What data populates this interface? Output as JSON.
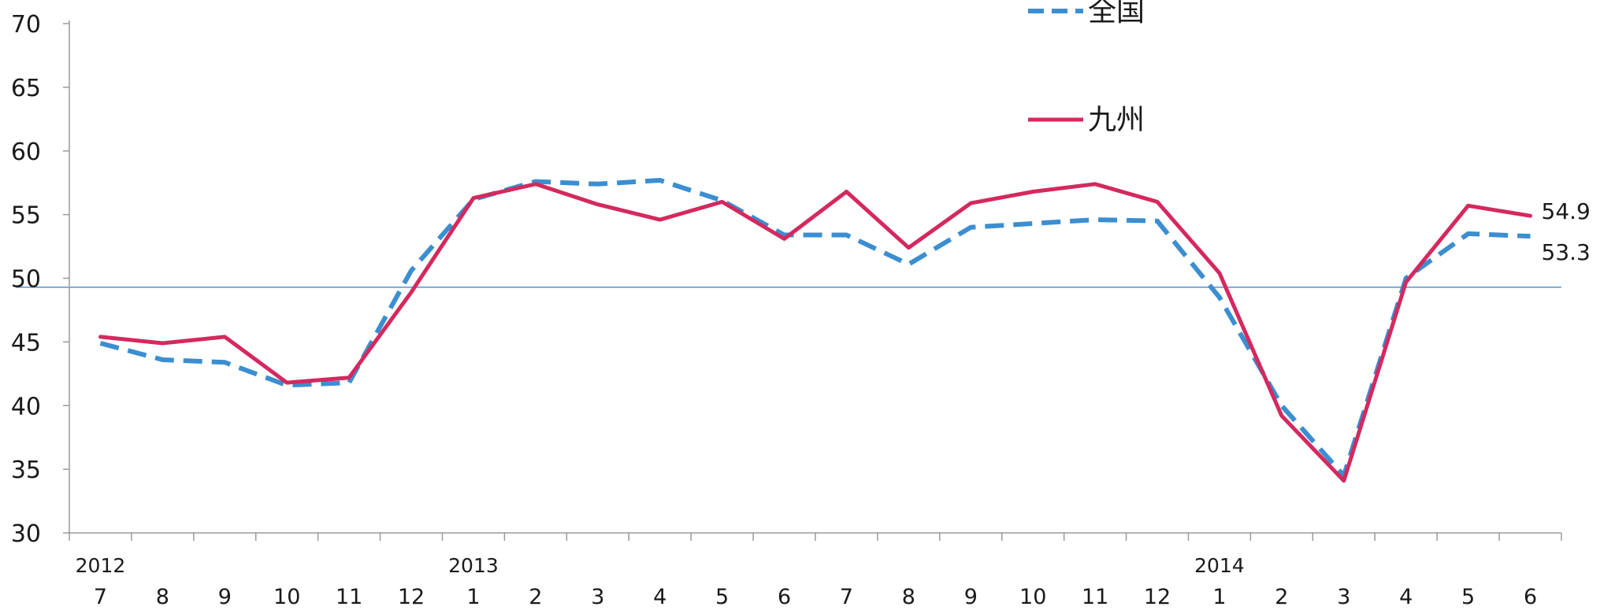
{
  "chart_data": {
    "type": "line",
    "title": "",
    "xlabel": "",
    "ylabel": "",
    "ylim": [
      30,
      70
    ],
    "yticks": [
      "70",
      "65",
      "60",
      "55",
      "50",
      "45",
      "40",
      "35",
      "30"
    ],
    "categories": [
      "7",
      "8",
      "9",
      "10",
      "11",
      "12",
      "1",
      "2",
      "3",
      "4",
      "5",
      "6",
      "7",
      "8",
      "9",
      "10",
      "11",
      "12",
      "1",
      "2",
      "3",
      "4",
      "5",
      "6"
    ],
    "year_labels": [
      {
        "index": 0,
        "label": "2012"
      },
      {
        "index": 6,
        "label": "2013"
      },
      {
        "index": 18,
        "label": "2014"
      }
    ],
    "reference_line": 49.3,
    "legend_position": "top-right",
    "series": [
      {
        "name": "全国",
        "style": "dashed",
        "color": "#3b8ed0",
        "values": [
          44.9,
          43.6,
          43.4,
          41.6,
          41.8,
          50.6,
          56.2,
          57.6,
          57.4,
          57.7,
          56.1,
          53.4,
          53.4,
          51.1,
          54.0,
          54.3,
          54.6,
          54.5,
          48.5,
          40.0,
          34.5,
          50.0,
          53.5,
          53.3
        ],
        "end_label": "53.3"
      },
      {
        "name": "九州",
        "style": "solid",
        "color": "#d4295e",
        "values": [
          45.4,
          44.9,
          45.4,
          41.8,
          42.2,
          48.9,
          56.3,
          57.4,
          55.8,
          54.6,
          56.0,
          53.1,
          56.8,
          52.4,
          55.9,
          56.8,
          57.4,
          56.0,
          50.4,
          39.2,
          34.1,
          49.7,
          55.7,
          54.9
        ],
        "end_label": "54.9"
      }
    ]
  }
}
